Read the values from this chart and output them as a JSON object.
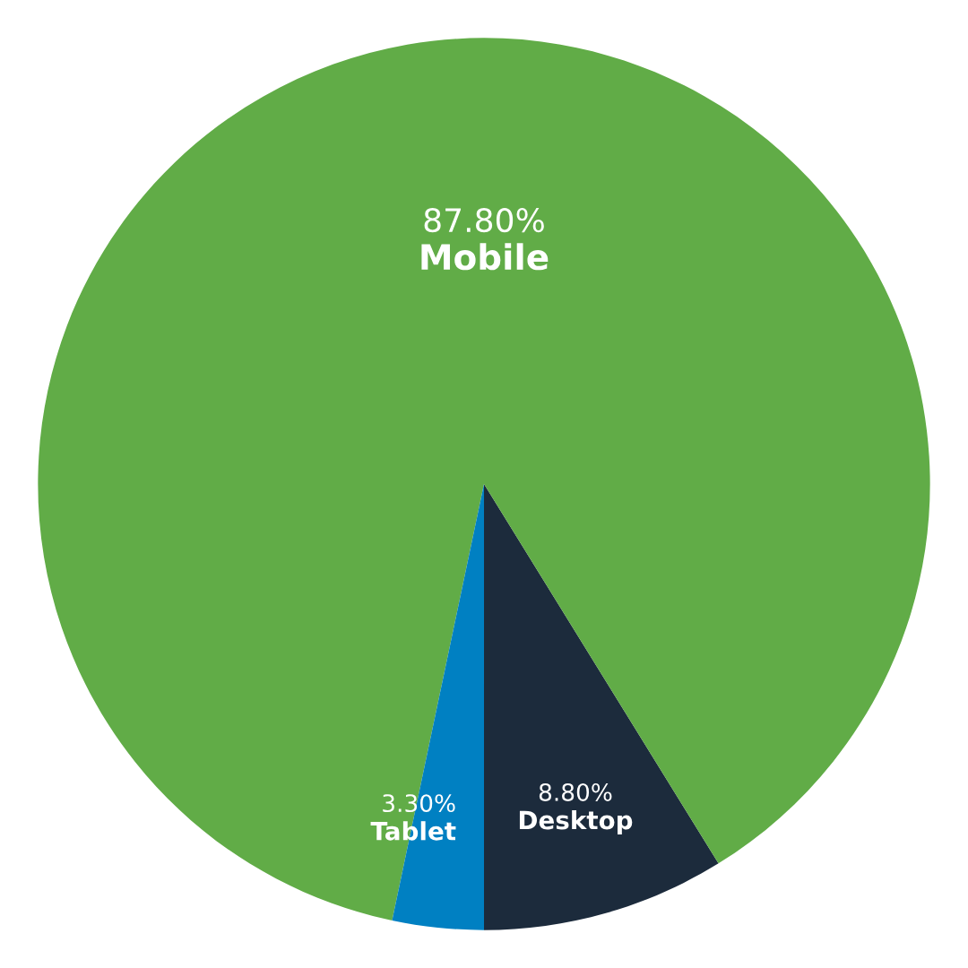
{
  "chart_data": {
    "type": "pie",
    "categories": [
      "Desktop",
      "Mobile",
      "Tablet"
    ],
    "values": [
      8.8,
      87.8,
      3.3
    ],
    "colors": [
      "#1c2b3c",
      "#61ac47",
      "#0080c2"
    ],
    "value_labels": [
      "8.80%",
      "87.80%",
      "3.30%"
    ],
    "legend": false
  }
}
